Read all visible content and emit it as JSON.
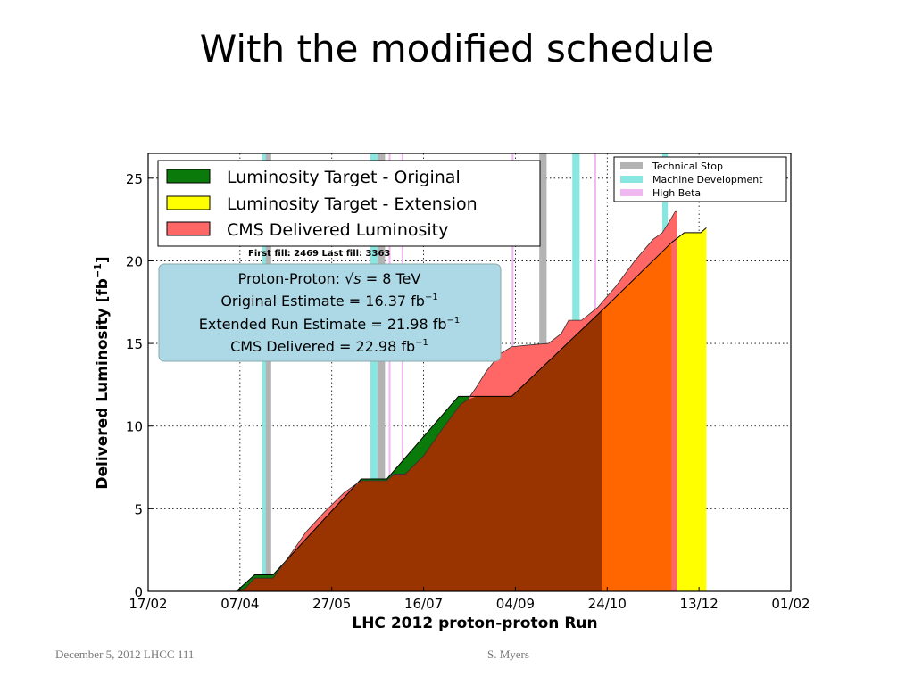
{
  "slide": {
    "title": "With the modified schedule",
    "footer_left": "December 5, 2012  LHCC 111",
    "footer_center": "S. Myers"
  },
  "chart_data": {
    "type": "area",
    "xlabel": "LHC 2012 proton-proton Run",
    "ylabel": "Delivered Luminosity [fb",
    "ylabel_exp": "−1",
    "ylabel_close": "]",
    "x_ticks": [
      "17/02",
      "07/04",
      "27/05",
      "16/07",
      "04/09",
      "24/10",
      "13/12",
      "01/02"
    ],
    "x_tick_dates": [
      "2012-02-17",
      "2012-04-07",
      "2012-05-27",
      "2012-07-16",
      "2012-09-04",
      "2012-10-24",
      "2012-12-13",
      "2013-02-01"
    ],
    "y_ticks": [
      0,
      5,
      10,
      15,
      20,
      25
    ],
    "xlim": [
      "2012-02-17",
      "2013-02-01"
    ],
    "ylim": [
      0,
      26.5
    ],
    "grid": true,
    "legend_main": {
      "placement": "top-left",
      "entries": [
        {
          "label": "Luminosity Target - Original",
          "color": "#0a7a0a"
        },
        {
          "label": "Luminosity Target - Extension",
          "color": "#ffff00"
        },
        {
          "label": "CMS Delivered Luminosity",
          "color": "#ff6666"
        }
      ]
    },
    "legend_periods": {
      "placement": "top-right",
      "entries": [
        {
          "label": "Technical Stop",
          "color": "#b3b3b3"
        },
        {
          "label": "Machine Development",
          "color": "#8ae6e0"
        },
        {
          "label": "High Beta",
          "color": "#f0b8f0"
        }
      ]
    },
    "fill_annotation": "First fill: 2469  Last fill: 3363",
    "info_box": {
      "line1_pre": "Proton-Proton: ",
      "line1_sqrt": "√s",
      "line1_post": " = 8 TeV",
      "line2": "Original Estimate =  16.37  fb",
      "line3": "Extended Run Estimate =  21.98  fb",
      "line4": "CMS Delivered =  22.98 fb",
      "unit_exp": "−1"
    },
    "periods": [
      {
        "type": "Machine Development",
        "start": "2012-04-19",
        "end": "2012-04-21"
      },
      {
        "type": "Technical Stop",
        "start": "2012-04-21",
        "end": "2012-04-24"
      },
      {
        "type": "Machine Development",
        "start": "2012-06-17",
        "end": "2012-06-21"
      },
      {
        "type": "Technical Stop",
        "start": "2012-06-21",
        "end": "2012-06-25"
      },
      {
        "type": "High Beta",
        "start": "2012-06-27",
        "end": "2012-06-28"
      },
      {
        "type": "High Beta",
        "start": "2012-07-04",
        "end": "2012-07-05"
      },
      {
        "type": "High Beta",
        "start": "2012-09-02",
        "end": "2012-09-03"
      },
      {
        "type": "Technical Stop",
        "start": "2012-09-17",
        "end": "2012-09-21"
      },
      {
        "type": "Machine Development",
        "start": "2012-10-05",
        "end": "2012-10-09"
      },
      {
        "type": "High Beta",
        "start": "2012-10-17",
        "end": "2012-10-18"
      },
      {
        "type": "Machine Development",
        "start": "2012-11-23",
        "end": "2012-11-26"
      }
    ],
    "series": [
      {
        "name": "Luminosity Target - Original",
        "points": [
          [
            "2012-04-05",
            0
          ],
          [
            "2012-04-15",
            1.0
          ],
          [
            "2012-04-25",
            1.0
          ],
          [
            "2012-06-12",
            6.8
          ],
          [
            "2012-06-26",
            6.8
          ],
          [
            "2012-08-04",
            11.8
          ],
          [
            "2012-09-02",
            11.8
          ],
          [
            "2012-10-24",
            17.3
          ],
          [
            "2012-11-28",
            21.1
          ]
        ]
      },
      {
        "name": "Luminosity Target - Extension",
        "points": [
          [
            "2012-11-28",
            21.1
          ],
          [
            "2012-12-05",
            21.7
          ],
          [
            "2012-12-14",
            21.7
          ],
          [
            "2012-12-17",
            22.0
          ]
        ]
      },
      {
        "name": "CMS Delivered Luminosity",
        "points": [
          [
            "2012-04-05",
            0
          ],
          [
            "2012-04-10",
            0.2
          ],
          [
            "2012-04-15",
            0.8
          ],
          [
            "2012-04-25",
            0.8
          ],
          [
            "2012-05-03",
            2.0
          ],
          [
            "2012-05-13",
            3.6
          ],
          [
            "2012-05-23",
            4.8
          ],
          [
            "2012-06-03",
            6.0
          ],
          [
            "2012-06-12",
            6.7
          ],
          [
            "2012-06-26",
            6.7
          ],
          [
            "2012-06-30",
            7.1
          ],
          [
            "2012-07-06",
            7.1
          ],
          [
            "2012-07-16",
            8.2
          ],
          [
            "2012-07-26",
            9.8
          ],
          [
            "2012-08-05",
            11.3
          ],
          [
            "2012-08-09",
            11.6
          ],
          [
            "2012-08-14",
            12.4
          ],
          [
            "2012-08-19",
            13.3
          ],
          [
            "2012-08-27",
            14.4
          ],
          [
            "2012-09-02",
            14.8
          ],
          [
            "2012-09-11",
            14.9
          ],
          [
            "2012-09-22",
            15.0
          ],
          [
            "2012-09-29",
            15.6
          ],
          [
            "2012-10-03",
            16.4
          ],
          [
            "2012-10-10",
            16.4
          ],
          [
            "2012-10-19",
            17.2
          ],
          [
            "2012-10-29",
            18.5
          ],
          [
            "2012-11-08",
            20.0
          ],
          [
            "2012-11-18",
            21.3
          ],
          [
            "2012-11-23",
            21.7
          ],
          [
            "2012-11-27",
            22.4
          ],
          [
            "2012-11-30",
            22.98
          ],
          [
            "2012-12-01",
            22.98
          ]
        ]
      }
    ]
  }
}
